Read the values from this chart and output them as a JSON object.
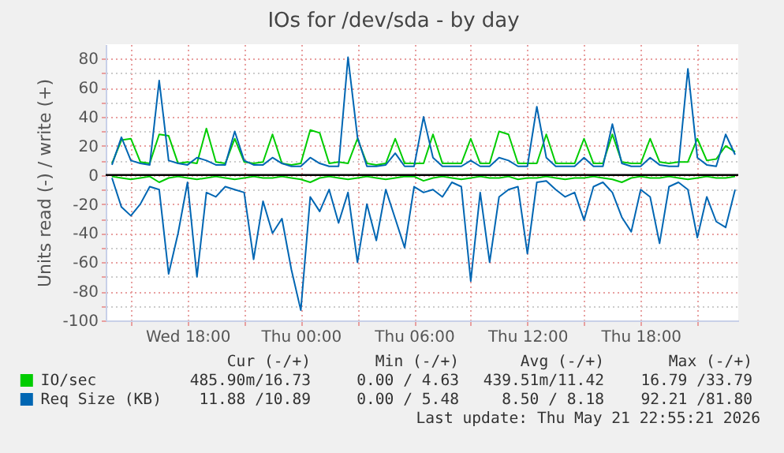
{
  "chart_data": {
    "type": "line",
    "title": "IOs for /dev/sda - by day",
    "ylabel": "Units read (-) / write (+)",
    "x": [
      "2026-05-20T14:00",
      "2026-05-20T14:30",
      "2026-05-20T15:00",
      "2026-05-20T15:30",
      "2026-05-20T16:00",
      "2026-05-20T16:30",
      "2026-05-20T17:00",
      "2026-05-20T17:30",
      "2026-05-20T18:00",
      "2026-05-20T18:30",
      "2026-05-20T19:00",
      "2026-05-20T19:30",
      "2026-05-20T20:00",
      "2026-05-20T20:30",
      "2026-05-20T21:00",
      "2026-05-20T21:30",
      "2026-05-20T22:00",
      "2026-05-20T22:30",
      "2026-05-20T23:00",
      "2026-05-20T23:30",
      "2026-05-21T00:00",
      "2026-05-21T00:30",
      "2026-05-21T01:00",
      "2026-05-21T01:30",
      "2026-05-21T02:00",
      "2026-05-21T02:30",
      "2026-05-21T03:00",
      "2026-05-21T03:30",
      "2026-05-21T04:00",
      "2026-05-21T04:30",
      "2026-05-21T05:00",
      "2026-05-21T05:30",
      "2026-05-21T06:00",
      "2026-05-21T06:30",
      "2026-05-21T07:00",
      "2026-05-21T07:30",
      "2026-05-21T08:00",
      "2026-05-21T08:30",
      "2026-05-21T09:00",
      "2026-05-21T09:30",
      "2026-05-21T10:00",
      "2026-05-21T10:30",
      "2026-05-21T11:00",
      "2026-05-21T11:30",
      "2026-05-21T12:00",
      "2026-05-21T12:30",
      "2026-05-21T13:00",
      "2026-05-21T13:30",
      "2026-05-21T14:00",
      "2026-05-21T14:30",
      "2026-05-21T15:00",
      "2026-05-21T15:30",
      "2026-05-21T16:00",
      "2026-05-21T16:30",
      "2026-05-21T17:00",
      "2026-05-21T17:30",
      "2026-05-21T18:00",
      "2026-05-21T18:30",
      "2026-05-21T19:00",
      "2026-05-21T19:30",
      "2026-05-21T20:00",
      "2026-05-21T20:30",
      "2026-05-21T21:00",
      "2026-05-21T21:30",
      "2026-05-21T22:00",
      "2026-05-21T22:30",
      "2026-05-21T23:00"
    ],
    "series": [
      {
        "name": "IO/sec",
        "color": "#00cc00",
        "values": [
          8,
          24,
          25,
          9,
          8,
          28,
          27,
          8,
          9,
          8,
          32,
          9,
          8,
          25,
          9,
          8,
          9,
          28,
          8,
          7,
          8,
          31,
          29,
          8,
          9,
          8,
          25,
          8,
          7,
          8,
          25,
          8,
          8,
          8,
          28,
          8,
          8,
          8,
          25,
          8,
          8,
          30,
          28,
          8,
          8,
          8,
          28,
          8,
          8,
          8,
          25,
          8,
          8,
          28,
          9,
          8,
          8,
          25,
          9,
          8,
          9,
          9,
          25,
          10,
          11,
          20,
          16
        ]
      },
      {
        "color": "#00cc00",
        "values": [
          -1,
          -2,
          -3,
          -2,
          -1,
          -5,
          -2,
          -1,
          -2,
          -3,
          -2,
          -1,
          -2,
          -3,
          -2,
          -1,
          -2,
          -2,
          -1,
          -2,
          -3,
          -5,
          -2,
          -1,
          -2,
          -3,
          -2,
          -1,
          -2,
          -3,
          -2,
          -1,
          -1,
          -4,
          -2,
          -1,
          -2,
          -3,
          -2,
          -1,
          -2,
          -2,
          -1,
          -3,
          -2,
          -2,
          -1,
          -2,
          -3,
          -2,
          -2,
          -1,
          -2,
          -3,
          -5,
          -2,
          -1,
          -2,
          -2,
          -1,
          -2,
          -3,
          -2,
          -1,
          -2,
          -2,
          -1
        ]
      },
      {
        "name": "Req Size (KB)",
        "color": "#0066b3",
        "values": [
          7,
          26,
          10,
          8,
          7,
          65,
          10,
          8,
          7,
          12,
          10,
          7,
          7,
          30,
          10,
          7,
          7,
          12,
          8,
          6,
          6,
          12,
          8,
          6,
          6,
          81,
          26,
          6,
          6,
          7,
          15,
          6,
          6,
          40,
          12,
          6,
          6,
          6,
          10,
          6,
          6,
          12,
          10,
          6,
          6,
          47,
          12,
          6,
          6,
          6,
          12,
          6,
          6,
          35,
          8,
          6,
          6,
          12,
          7,
          6,
          6,
          73,
          12,
          7,
          6,
          28,
          14
        ]
      },
      {
        "color": "#0066b3",
        "values": [
          -2,
          -22,
          -28,
          -20,
          -8,
          -10,
          -68,
          -40,
          -5,
          -70,
          -12,
          -15,
          -8,
          -10,
          -12,
          -58,
          -18,
          -40,
          -30,
          -65,
          -93,
          -15,
          -25,
          -10,
          -33,
          -12,
          -60,
          -20,
          -45,
          -10,
          -30,
          -50,
          -8,
          -12,
          -10,
          -15,
          -5,
          -8,
          -73,
          -12,
          -60,
          -15,
          -10,
          -8,
          -54,
          -5,
          -4,
          -10,
          -15,
          -12,
          -31,
          -8,
          -5,
          -12,
          -29,
          -39,
          -10,
          -15,
          -47,
          -8,
          -5,
          -10,
          -43,
          -15,
          -32,
          -36,
          -10
        ]
      }
    ],
    "xlim": [
      "2026-05-20T13:40",
      "2026-05-21T23:10"
    ],
    "xticks": [
      {
        "value": "2026-05-20T15:00",
        "label": null
      },
      {
        "value": "2026-05-20T18:00",
        "label": "Wed 18:00"
      },
      {
        "value": "2026-05-20T21:00",
        "label": null
      },
      {
        "value": "2026-05-21T00:00",
        "label": "Thu 00:00"
      },
      {
        "value": "2026-05-21T03:00",
        "label": null
      },
      {
        "value": "2026-05-21T06:00",
        "label": "Thu 06:00"
      },
      {
        "value": "2026-05-21T09:00",
        "label": null
      },
      {
        "value": "2026-05-21T12:00",
        "label": "Thu 12:00"
      },
      {
        "value": "2026-05-21T15:00",
        "label": null
      },
      {
        "value": "2026-05-21T18:00",
        "label": "Thu 18:00"
      },
      {
        "value": "2026-05-21T21:00",
        "label": null
      }
    ],
    "ylim": [
      -100,
      90
    ],
    "yticks": [
      -100,
      {
        "value": -90,
        "label": null
      },
      -80,
      {
        "value": -70,
        "label": null
      },
      -60,
      {
        "value": -50,
        "label": null
      },
      -40,
      {
        "value": -30,
        "label": null
      },
      -20,
      {
        "value": -10,
        "label": null
      },
      0,
      {
        "value": 10,
        "label": null
      },
      20,
      {
        "value": 30,
        "label": null
      },
      40,
      {
        "value": 50,
        "label": null
      },
      60,
      {
        "value": 70,
        "label": null
      },
      80
    ],
    "ref_lines": [
      {
        "axis": "y",
        "value": 0,
        "color": "#000000"
      }
    ],
    "grid": true,
    "legend": "bottom",
    "line_style": "solid",
    "marker": "none",
    "annotations": [
      "Cur (-/+)",
      "Min (-/+)",
      "Avg (-/+)",
      "Max (-/+)",
      "485.90m/16.73",
      "0.00 / 4.63",
      "439.51m/11.42",
      "16.79 /33.79",
      "11.88 /10.89",
      "0.00 / 5.48",
      "8.50 / 8.18",
      "92.21 /81.80",
      "Last update: Thu May 21 22:55:21 2026"
    ]
  }
}
